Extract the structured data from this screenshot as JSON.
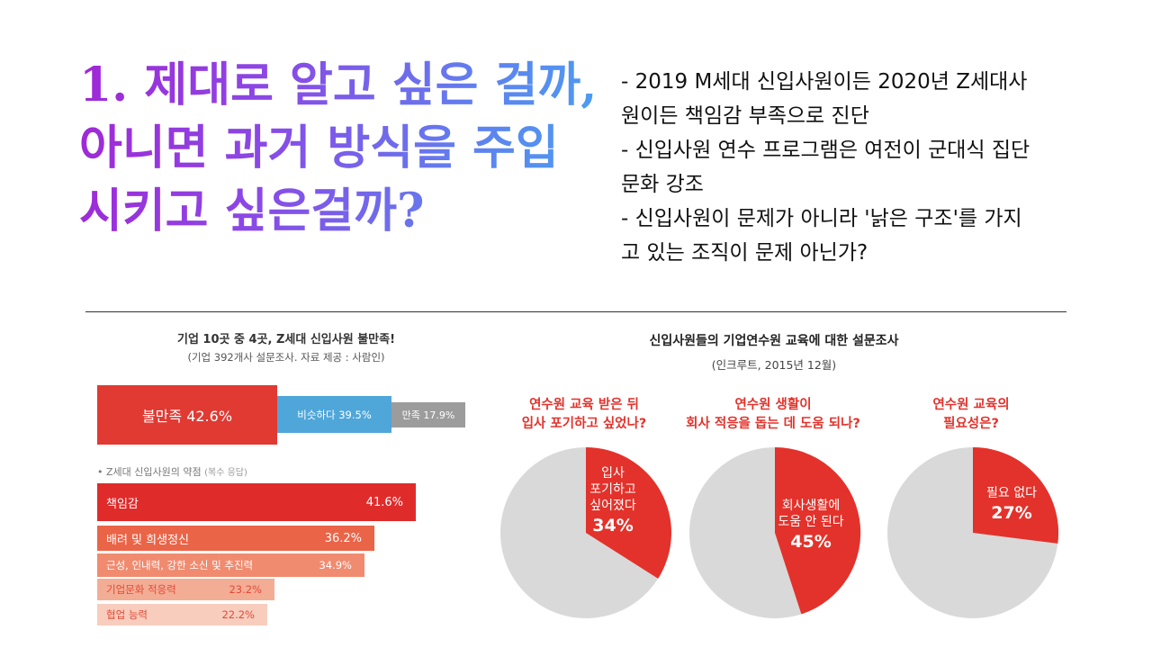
{
  "title": "1. 제대로 알고 싶은 걸까,\n아니면 과거 방식을 주입\n시키고 싶은걸까?",
  "bullets": [
    "- 2019 M세대 신입사원이든 2020년 Z세대사",
    "원이든 책임감 부족으로 진단",
    "- 신입사원 연수 프로그램은 여전이 군대식 집단",
    "문화 강조",
    "- 신입사원이 문제가 아니라 '낡은 구조'를 가지",
    "고 있는 조직이 문제 아닌가?"
  ],
  "colors": {
    "red": "#e03a33",
    "blue": "#4fa6d9",
    "gray": "#9c9c9c",
    "pie_gray": "#d9d9d9"
  },
  "chart_data": [
    {
      "type": "bar",
      "title": "기업 10곳 중 4곳, Z세대 신입사원 불만족!",
      "subtitle": "(기업 392개사 설문조사. 자료 제공 : 사람인)",
      "categories": [
        "불만족",
        "비슷하다",
        "만족"
      ],
      "values": [
        42.6,
        39.5,
        17.9
      ],
      "labels": [
        "불만족 42.6%",
        "비슷하다 39.5%",
        "만족 17.9%"
      ]
    },
    {
      "type": "bar",
      "title": "• Z세대 신입사원의 약점",
      "title_note": "(복수 응답)",
      "categories": [
        "책임감",
        "배려 및 희생정신",
        "근성, 인내력, 강한 소신 및 추진력",
        "기업문화 적응력",
        "협업 능력"
      ],
      "values": [
        41.6,
        36.2,
        34.9,
        23.2,
        22.2
      ],
      "value_labels": [
        "41.6%",
        "36.2%",
        "34.9%",
        "23.2%",
        "22.2%"
      ],
      "colors": [
        "#e02b2b",
        "#ea6448",
        "#f08b70",
        "#f4ad95",
        "#f8cdbd"
      ]
    },
    {
      "type": "pie",
      "title": "신입사원들의 기업연수원 교육에 대한 설문조사",
      "subtitle": "(인크루트, 2015년 12월)",
      "pies": [
        {
          "question": "연수원 교육 받은 뒤\n입사 포기하고 싶었나?",
          "label": "입사\n포기하고\n싶어졌다",
          "value": 34,
          "value_label": "34%"
        },
        {
          "question": "연수원 생활이\n회사 적응을 돕는 데 도움 되나?",
          "label": "회사생활에\n도움 안 된다",
          "value": 45,
          "value_label": "45%"
        },
        {
          "question": "연수원 교육의\n필요성은?",
          "label": "필요 없다",
          "value": 27,
          "value_label": "27%"
        }
      ]
    }
  ]
}
